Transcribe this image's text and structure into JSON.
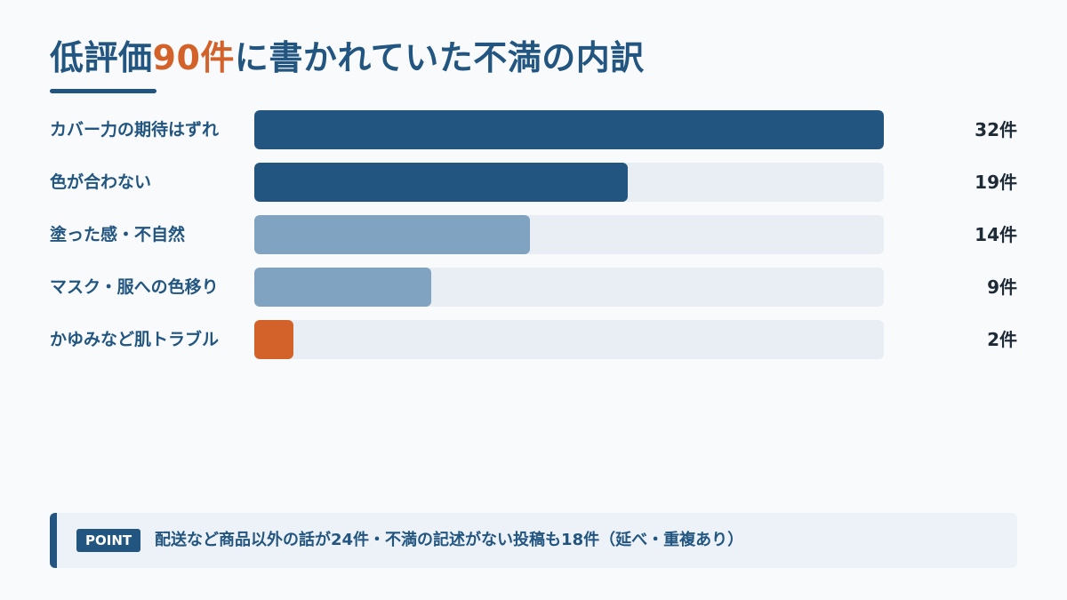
{
  "title": {
    "prefix": "低評価",
    "highlight": "90件",
    "suffix": "に書かれていた不満の内訳"
  },
  "colors": {
    "primary": "#22557f",
    "accent": "#d3622a",
    "muted": "#7fa3c1",
    "track": "#e9eef4"
  },
  "chart_data": {
    "type": "bar",
    "orientation": "horizontal",
    "categories": [
      "カバー力の期待はずれ",
      "色が合わない",
      "塗った感・不自然",
      "マスク・服への色移り",
      "かゆみなど肌トラブル"
    ],
    "values": [
      32,
      19,
      14,
      9,
      2
    ],
    "value_labels": [
      "32件",
      "19件",
      "14件",
      "9件",
      "2件"
    ],
    "bar_colors": [
      "#22557f",
      "#22557f",
      "#7fa3c1",
      "#7fa3c1",
      "#d3622a"
    ],
    "xlim": [
      0,
      32
    ],
    "grid": false,
    "legend": "none"
  },
  "point": {
    "badge": "POINT",
    "text": "配送など商品以外の話が24件・不満の記述がない投稿も18件（延べ・重複あり）"
  }
}
